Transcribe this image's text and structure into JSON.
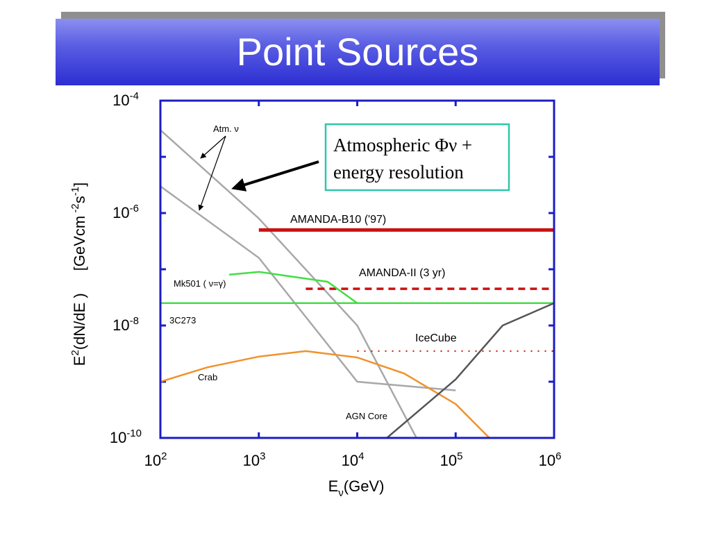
{
  "slide": {
    "title": "Point Sources"
  },
  "chart_data": {
    "type": "line",
    "xscale": "log",
    "yscale": "log",
    "xlim": [
      100,
      1000000
    ],
    "ylim": [
      1e-10,
      0.0001
    ],
    "xlabel": "E_ν(GeV)",
    "ylabel": "E^2(dN/dE )    [GeVcm^-2 s^-1]",
    "x_tick_labels": [
      {
        "base": "10",
        "exp": "2",
        "value": 100
      },
      {
        "base": "10",
        "exp": "3",
        "value": 1000
      },
      {
        "base": "10",
        "exp": "4",
        "value": 10000
      },
      {
        "base": "10",
        "exp": "5",
        "value": 100000
      },
      {
        "base": "10",
        "exp": "6",
        "value": 1000000
      }
    ],
    "y_tick_labels": [
      {
        "base": "10",
        "exp": "-4",
        "value": 0.0001
      },
      {
        "base": "10",
        "exp": "-6",
        "value": 1e-06
      },
      {
        "base": "10",
        "exp": "-8",
        "value": 1e-08
      },
      {
        "base": "10",
        "exp": "-10",
        "value": 1e-10
      }
    ],
    "series": [
      {
        "name": "Atm. ν",
        "color": "#a8a8a8",
        "style": "solid",
        "x": [
          100,
          1000,
          10000,
          40000
        ],
        "y": [
          3e-05,
          8e-07,
          1e-08,
          1e-10
        ]
      },
      {
        "name": "Atm. ν",
        "color": "#a8a8a8",
        "style": "solid",
        "x": [
          100,
          1000,
          10000,
          100000
        ],
        "y": [
          3e-06,
          1.6e-07,
          1e-09,
          7e-10
        ]
      },
      {
        "name": "AMANDA-B10 ('97)",
        "color": "#cc1111",
        "style": "solid",
        "x": [
          1000,
          1000000
        ],
        "y": [
          5e-07,
          5e-07
        ]
      },
      {
        "name": "AMANDA-II (3 yr)",
        "color": "#cc1111",
        "style": "dashed",
        "x": [
          3000,
          1000000
        ],
        "y": [
          4.5e-08,
          4.5e-08
        ]
      },
      {
        "name": "IceCube",
        "color": "#cc1111",
        "style": "dotted",
        "x": [
          10000,
          1000000
        ],
        "y": [
          3.5e-09,
          3.5e-09
        ]
      },
      {
        "name": "Mk501 ( ν=γ)",
        "color": "#44dd44",
        "style": "solid",
        "x": [
          500,
          1000,
          5000,
          10000
        ],
        "y": [
          8e-08,
          9e-08,
          6e-08,
          2.5e-08
        ]
      },
      {
        "name": "3C273",
        "color": "#44dd44",
        "style": "solid",
        "x": [
          100,
          1000000
        ],
        "y": [
          2.5e-08,
          2.5e-08
        ]
      },
      {
        "name": "Crab",
        "color": "#f0922a",
        "style": "solid",
        "x": [
          100,
          300,
          1000,
          3000,
          10000,
          30000,
          100000,
          220000
        ],
        "y": [
          1e-09,
          1.8e-09,
          2.8e-09,
          3.5e-09,
          2.7e-09,
          1.4e-09,
          4e-10,
          1e-10
        ]
      },
      {
        "name": "AGN Core",
        "color": "#555555",
        "style": "solid",
        "x": [
          20000,
          100000,
          300000,
          1000000
        ],
        "y": [
          1e-10,
          1.1e-09,
          1e-08,
          2.5e-08
        ]
      }
    ],
    "annotations": {
      "atm": "Atm. ν",
      "amanda_b10": "AMANDA-B10 ('97)",
      "amanda_ii": "AMANDA-II (3 yr)",
      "icecube": "IceCube",
      "mk501": "Mk501 ( ν=γ)",
      "c3c273": "3C273",
      "crab": "Crab",
      "agn": "AGN Core",
      "callout_line1": "Atmospheric Φν +",
      "callout_line2": "energy resolution"
    },
    "grid": false
  }
}
